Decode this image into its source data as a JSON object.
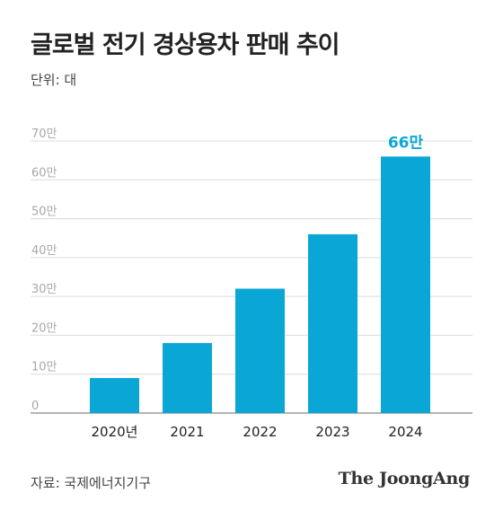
{
  "header": {
    "title": "글로벌 전기 경상용차 판매 추이",
    "unit": "단위: 대"
  },
  "footer": {
    "source": "자료: 국제에너지기구",
    "brand": "The JoongAng"
  },
  "chart_data": {
    "type": "bar",
    "title": "글로벌 전기 경상용차 판매 추이",
    "xlabel": "",
    "ylabel": "",
    "unit_label": "단위: 대",
    "categories": [
      "2020년",
      "2021",
      "2022",
      "2023",
      "2024"
    ],
    "values": [
      90000,
      180000,
      320000,
      460000,
      660000
    ],
    "ylim": [
      0,
      700000
    ],
    "yticks": [
      {
        "value": 0,
        "label": "0"
      },
      {
        "value": 100000,
        "label": "10만"
      },
      {
        "value": 200000,
        "label": "20만"
      },
      {
        "value": 300000,
        "label": "30만"
      },
      {
        "value": 400000,
        "label": "40만"
      },
      {
        "value": 500000,
        "label": "50만"
      },
      {
        "value": 600000,
        "label": "60만"
      },
      {
        "value": 700000,
        "label": "70만"
      }
    ],
    "data_labels": [
      {
        "index": 4,
        "label": "66만"
      }
    ],
    "grid": true,
    "bar_color": "#0aa6d6",
    "highlight_label_color": "#0aa6d6"
  }
}
